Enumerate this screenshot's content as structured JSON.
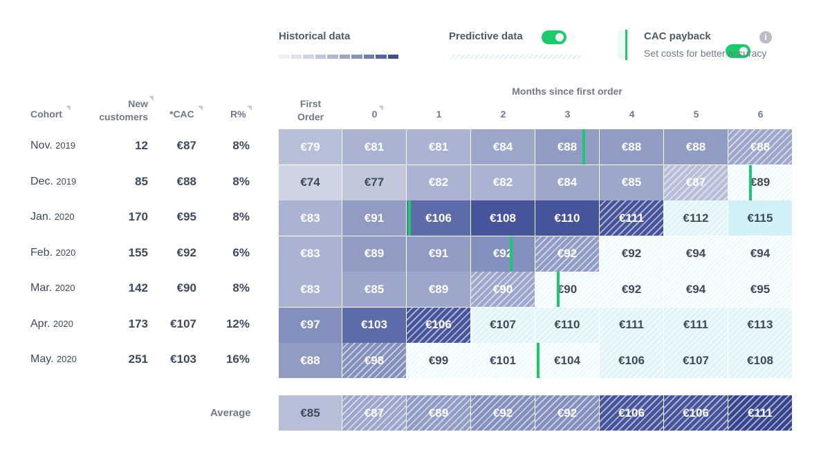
{
  "legend": {
    "historical_label": "Historical data",
    "historical_colors": [
      "#eef0f6",
      "#dfe3ee",
      "#cfd5e6",
      "#bfc6dd",
      "#aeb7d3",
      "#9aa5c8",
      "#8592bc",
      "#6f7db0",
      "#56649f",
      "#3f4e8e"
    ],
    "predictive_label": "Predictive data",
    "predictive_toggle_on": true,
    "cac_label": "CAC payback",
    "cac_toggle_on": true,
    "cac_hint": "Set costs for better accuracy",
    "info_icon": "i"
  },
  "header": {
    "cohort": "Cohort",
    "new_customers_line1": "New",
    "new_customers_line2": "customers",
    "cac": "*CAC",
    "retention": "R%",
    "first_order_line1": "First",
    "first_order_line2": "Order",
    "months_title": "Months since first order",
    "months": [
      "0",
      "1",
      "2",
      "3",
      "4",
      "5",
      "6"
    ]
  },
  "rows": [
    {
      "month": "Nov.",
      "year": "2019",
      "new_customers": "12",
      "cac": "€87",
      "retention": "8%"
    },
    {
      "month": "Dec.",
      "year": "2019",
      "new_customers": "85",
      "cac": "€88",
      "retention": "8%"
    },
    {
      "month": "Jan.",
      "year": "2020",
      "new_customers": "170",
      "cac": "€95",
      "retention": "8%"
    },
    {
      "month": "Feb.",
      "year": "2020",
      "new_customers": "155",
      "cac": "€92",
      "retention": "6%"
    },
    {
      "month": "Mar.",
      "year": "2020",
      "new_customers": "142",
      "cac": "€90",
      "retention": "8%"
    },
    {
      "month": "Apr.",
      "year": "2020",
      "new_customers": "173",
      "cac": "€107",
      "retention": "12%"
    },
    {
      "month": "May.",
      "year": "2020",
      "new_customers": "251",
      "cac": "€103",
      "retention": "16%"
    }
  ],
  "grid": [
    [
      {
        "v": "€79",
        "t": "h",
        "s": 3
      },
      {
        "v": "€81",
        "t": "h",
        "s": 4
      },
      {
        "v": "€81",
        "t": "h",
        "s": 4
      },
      {
        "v": "€84",
        "t": "h",
        "s": 5
      },
      {
        "v": "€88",
        "t": "h",
        "s": 6,
        "payback": "right"
      },
      {
        "v": "€88",
        "t": "h",
        "s": 6
      },
      {
        "v": "€88",
        "t": "h",
        "s": 6
      },
      {
        "v": "€88",
        "t": "hatch",
        "s": 5
      }
    ],
    [
      {
        "v": "€74",
        "t": "h",
        "s": 1
      },
      {
        "v": "€77",
        "t": "h",
        "s": 2
      },
      {
        "v": "€82",
        "t": "h",
        "s": 4
      },
      {
        "v": "€82",
        "t": "h",
        "s": 4
      },
      {
        "v": "€84",
        "t": "h",
        "s": 5
      },
      {
        "v": "€85",
        "t": "h",
        "s": 5
      },
      {
        "v": "€87",
        "t": "hatch",
        "s": 3
      },
      {
        "v": "€89",
        "t": "p",
        "s": 0,
        "payback": "left"
      }
    ],
    [
      {
        "v": "€83",
        "t": "h",
        "s": 4
      },
      {
        "v": "€91",
        "t": "h",
        "s": 6
      },
      {
        "v": "€106",
        "t": "h",
        "s": 8,
        "payback": "left"
      },
      {
        "v": "€108",
        "t": "h",
        "s": 9
      },
      {
        "v": "€110",
        "t": "h",
        "s": 9
      },
      {
        "v": "€111",
        "t": "hatch",
        "s": 9
      },
      {
        "v": "€112",
        "t": "p",
        "s": 1
      },
      {
        "v": "€115",
        "t": "p",
        "s": 2
      }
    ],
    [
      {
        "v": "€83",
        "t": "h",
        "s": 4
      },
      {
        "v": "€89",
        "t": "h",
        "s": 6
      },
      {
        "v": "€91",
        "t": "h",
        "s": 6
      },
      {
        "v": "€92",
        "t": "h",
        "s": 7,
        "payback": "right"
      },
      {
        "v": "€92",
        "t": "hatch",
        "s": 6
      },
      {
        "v": "€92",
        "t": "p",
        "s": 0
      },
      {
        "v": "€94",
        "t": "p",
        "s": 0
      },
      {
        "v": "€94",
        "t": "p",
        "s": 0
      }
    ],
    [
      {
        "v": "€83",
        "t": "h",
        "s": 4
      },
      {
        "v": "€85",
        "t": "h",
        "s": 5
      },
      {
        "v": "€89",
        "t": "h",
        "s": 5
      },
      {
        "v": "€90",
        "t": "hatch",
        "s": 5
      },
      {
        "v": "€90",
        "t": "p",
        "s": 0,
        "payback": "left"
      },
      {
        "v": "€92",
        "t": "p",
        "s": 0
      },
      {
        "v": "€94",
        "t": "p",
        "s": 0
      },
      {
        "v": "€95",
        "t": "p",
        "s": 0
      }
    ],
    [
      {
        "v": "€97",
        "t": "h",
        "s": 7
      },
      {
        "v": "€103",
        "t": "h",
        "s": 8
      },
      {
        "v": "€106",
        "t": "hatch",
        "s": 9
      },
      {
        "v": "€107",
        "t": "p",
        "s": 1
      },
      {
        "v": "€110",
        "t": "p",
        "s": 1
      },
      {
        "v": "€111",
        "t": "p",
        "s": 1
      },
      {
        "v": "€111",
        "t": "p",
        "s": 1
      },
      {
        "v": "€113",
        "t": "p",
        "s": 1
      }
    ],
    [
      {
        "v": "€88",
        "t": "h",
        "s": 6
      },
      {
        "v": "€98",
        "t": "hatch",
        "s": 7
      },
      {
        "v": "€99",
        "t": "p",
        "s": 0
      },
      {
        "v": "€101",
        "t": "p",
        "s": 0
      },
      {
        "v": "€104",
        "t": "p",
        "s": 0,
        "payback": "left"
      },
      {
        "v": "€106",
        "t": "p",
        "s": 1
      },
      {
        "v": "€107",
        "t": "p",
        "s": 1
      },
      {
        "v": "€108",
        "t": "p",
        "s": 1
      }
    ]
  ],
  "average": {
    "label": "Average",
    "cells": [
      {
        "v": "€85",
        "t": "h",
        "s": 3
      },
      {
        "v": "€87",
        "t": "hatch",
        "s": 5
      },
      {
        "v": "€89",
        "t": "hatch",
        "s": 6
      },
      {
        "v": "€92",
        "t": "hatch",
        "s": 7
      },
      {
        "v": "€92",
        "t": "hatch",
        "s": 7
      },
      {
        "v": "€106",
        "t": "hatch",
        "s": 9
      },
      {
        "v": "€106",
        "t": "hatch",
        "s": 9
      },
      {
        "v": "€111",
        "t": "hatch",
        "s": 10
      }
    ]
  },
  "colors": {
    "payback": "#18cc6b",
    "scale": [
      "#e6eaf3",
      "#cfd4e3",
      "#c2c8dc",
      "#b7bed8",
      "#aab3d1",
      "#9da7cb",
      "#919cc4",
      "#8390be",
      "#5d6ca8",
      "#46559b",
      "#36458d"
    ],
    "predictive": [
      "#eefafc",
      "#e0f4f9",
      "#d2f0f7"
    ]
  }
}
